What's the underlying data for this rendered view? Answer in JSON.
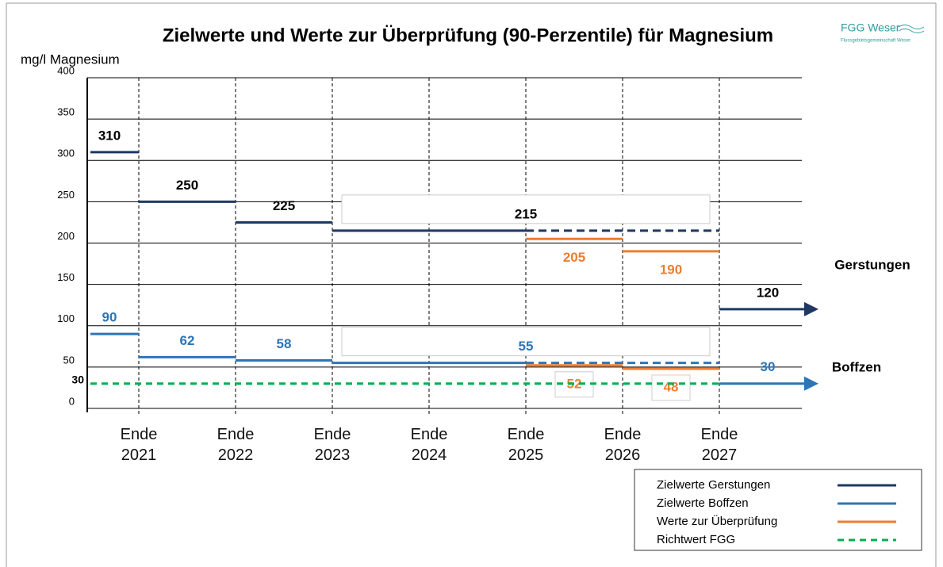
{
  "chart_data": {
    "type": "step",
    "title": "Zielwerte und Werte zur Überprüfung (90-Perzentile) für Magnesium",
    "logo": {
      "name": "FGG Weser",
      "subtitle": "Flussgebietsgemeinschaft Weser"
    },
    "y_label": "mg/l Magnesium",
    "xlim": [
      2020.5,
      2028
    ],
    "xticks": [
      {
        "value": 2021,
        "label": "Ende 2021"
      },
      {
        "value": 2022,
        "label": "Ende 2022"
      },
      {
        "value": 2023,
        "label": "Ende 2023"
      },
      {
        "value": 2024,
        "label": "Ende 2024"
      },
      {
        "value": 2025,
        "label": "Ende 2025"
      },
      {
        "value": 2026,
        "label": "Ende 2026"
      },
      {
        "value": 2027,
        "label": "Ende 2027"
      }
    ],
    "ylim": [
      0,
      400
    ],
    "yticks": [
      0,
      50,
      100,
      150,
      200,
      250,
      300,
      350,
      400
    ],
    "grid": true,
    "annotations": [
      "Gerstungen",
      "Boffzen"
    ],
    "series": [
      {
        "name": "Zielwerte Gerstungen",
        "color": "#1f3864",
        "labels": "above",
        "segments": [
          {
            "from": 2020.5,
            "to": 2021,
            "value": 310
          },
          {
            "from": 2021,
            "to": 2022,
            "value": 250
          },
          {
            "from": 2022,
            "to": 2023,
            "value": 225
          },
          {
            "from": 2023,
            "to": 2027,
            "value": 215,
            "dashed_from": 2025
          },
          {
            "from": 2027,
            "to": 2028,
            "value": 120,
            "arrow": true
          }
        ]
      },
      {
        "name": "Zielwerte Boffzen",
        "color": "#2e75b6",
        "labels": "above",
        "segments": [
          {
            "from": 2020.5,
            "to": 2021,
            "value": 90
          },
          {
            "from": 2021,
            "to": 2022,
            "value": 62
          },
          {
            "from": 2022,
            "to": 2023,
            "value": 58
          },
          {
            "from": 2023,
            "to": 2027,
            "value": 55,
            "dashed_from": 2025
          },
          {
            "from": 2027,
            "to": 2028,
            "value": 30,
            "arrow": true
          }
        ]
      },
      {
        "name": "Werte zur Überprüfung",
        "color": "#ed7d31",
        "labels": "below",
        "segments": [
          {
            "from": 2025,
            "to": 2026,
            "value": 205
          },
          {
            "from": 2026,
            "to": 2027,
            "value": 190
          },
          {
            "from": 2025,
            "to": 2026,
            "value": 52
          },
          {
            "from": 2026,
            "to": 2027,
            "value": 48
          }
        ]
      },
      {
        "name": "Richtwert FGG",
        "color": "#00b050",
        "labels": "left",
        "dashed": true,
        "segments": [
          {
            "from": 2020.5,
            "to": 2027,
            "value": 30
          }
        ]
      }
    ]
  }
}
